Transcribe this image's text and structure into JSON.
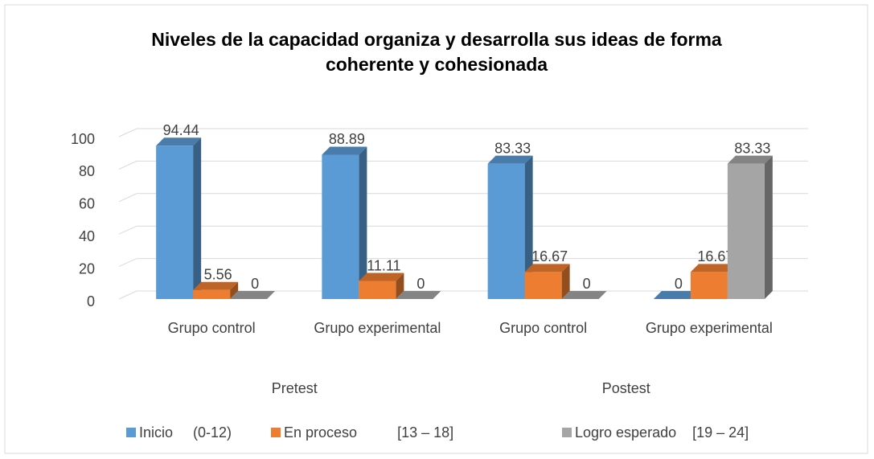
{
  "chart_data": {
    "type": "bar3d",
    "title": "Niveles de la capacidad organiza y desarrolla sus ideas de forma coherente y cohesionada",
    "categories": [
      "Grupo control",
      "Grupo experimental",
      "Grupo control",
      "Grupo experimental"
    ],
    "groups": [
      "Pretest",
      "Postest"
    ],
    "series": [
      {
        "name": "Inicio     (0-12)",
        "color": "#5b9bd5",
        "values": [
          94.44,
          88.89,
          83.33,
          0
        ]
      },
      {
        "name": "En proceso          [13 – 18]",
        "color": "#ed7d31",
        "values": [
          5.56,
          11.11,
          16.67,
          16.67
        ]
      },
      {
        "name": "Logro esperado    [19 – 24]",
        "color": "#a5a5a5",
        "values": [
          0,
          0,
          0,
          83.33
        ]
      }
    ],
    "ylim": [
      0,
      100
    ],
    "yticks": [
      0,
      20,
      40,
      60,
      80,
      100
    ],
    "grid": true,
    "legend": "bottom"
  }
}
